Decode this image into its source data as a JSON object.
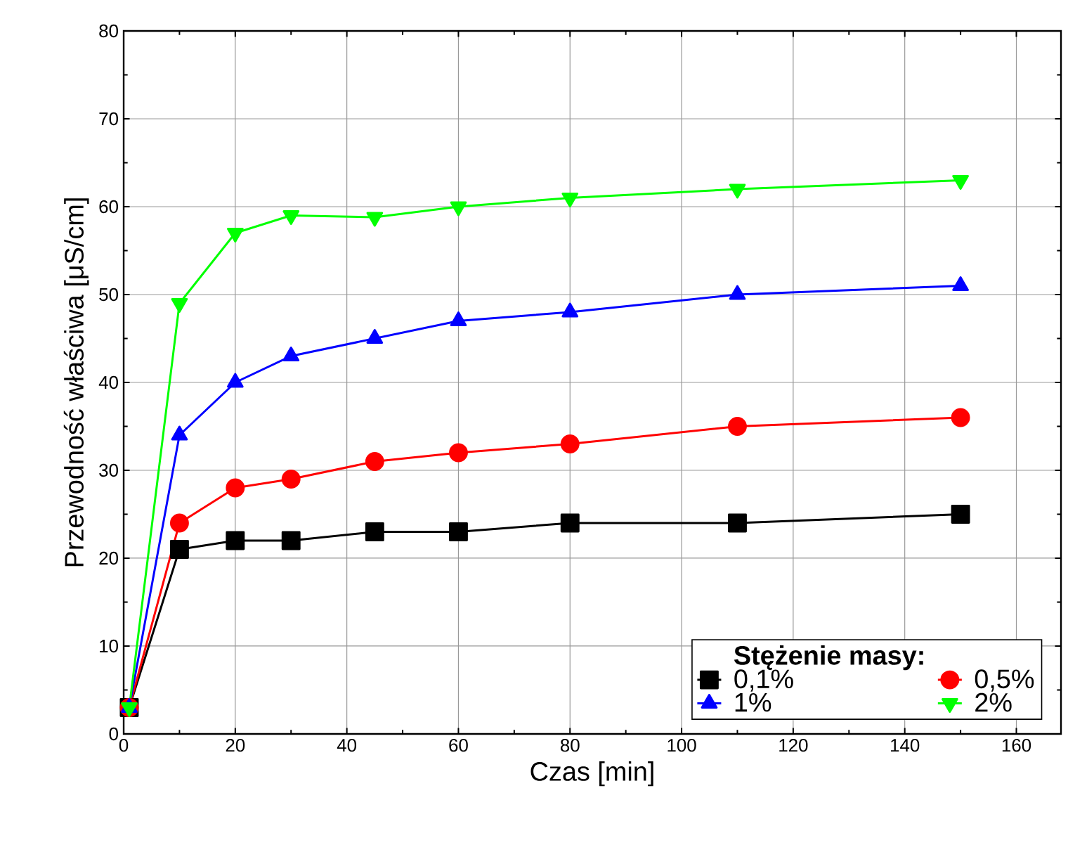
{
  "chart_data": {
    "type": "line",
    "xlabel": "Czas [min]",
    "ylabel": "Przewodność właściwa [μS/cm]",
    "legend_title": "Stężenie masy:",
    "x": [
      1,
      10,
      20,
      30,
      45,
      60,
      80,
      110,
      150
    ],
    "series": [
      {
        "name": "0,1%",
        "color": "#000000",
        "marker": "square",
        "values": [
          3,
          21,
          22,
          22,
          23,
          23,
          24,
          24,
          25
        ]
      },
      {
        "name": "0,5%",
        "color": "#ff0000",
        "marker": "circle",
        "values": [
          3,
          24,
          28,
          29,
          31,
          32,
          33,
          35,
          36
        ]
      },
      {
        "name": "1%",
        "color": "#0000ff",
        "marker": "triangle",
        "values": [
          3,
          34,
          40,
          43,
          45,
          47,
          48,
          50,
          51
        ]
      },
      {
        "name": "2%",
        "color": "#00ff00",
        "marker": "triangle-down",
        "values": [
          3,
          49,
          57,
          59,
          58.8,
          60,
          61,
          62,
          63
        ]
      }
    ],
    "xlim": [
      0,
      168
    ],
    "ylim": [
      0,
      80
    ],
    "xticks": [
      0,
      20,
      40,
      60,
      80,
      100,
      120,
      140,
      160
    ],
    "yticks": [
      0,
      10,
      20,
      30,
      40,
      50,
      60,
      70,
      80
    ],
    "grid": true,
    "legend": "bottom right",
    "line_style": "solid"
  }
}
